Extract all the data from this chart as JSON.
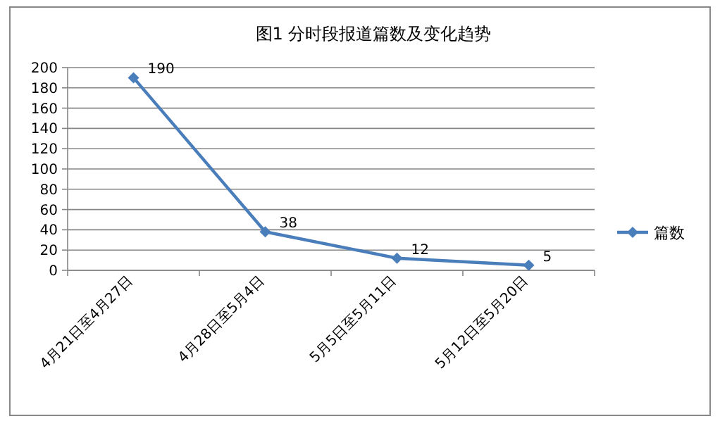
{
  "chart_data": {
    "type": "line",
    "title": "图1 分时段报道篇数及变化趋势",
    "categories": [
      "4月21日至4月27日",
      "4月28日至5月4日",
      "5月5日至5月11日",
      "5月12日至5月20日"
    ],
    "series": [
      {
        "name": "篇数",
        "color": "#4a7ebb",
        "values": [
          190,
          38,
          12,
          5
        ]
      }
    ],
    "ylim": [
      0,
      200
    ],
    "yticks": [
      0,
      20,
      40,
      60,
      80,
      100,
      120,
      140,
      160,
      180,
      200
    ],
    "grid": "y",
    "legend": "right",
    "marker": "diamond",
    "data_labels": true
  }
}
